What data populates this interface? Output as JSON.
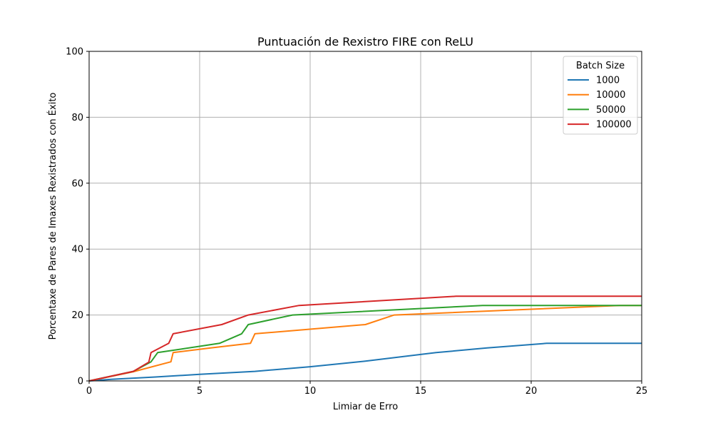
{
  "chart_data": {
    "type": "line",
    "title": "Puntuación de Rexistro FIRE con ReLU",
    "xlabel": "Limiar de Erro",
    "ylabel": "Porcentaxe de Pares de Imaxes Rexistrados con Éxito",
    "xlim": [
      0,
      25
    ],
    "ylim": [
      0,
      100
    ],
    "xticks": [
      0,
      5,
      10,
      15,
      20,
      25
    ],
    "yticks": [
      0,
      20,
      40,
      60,
      80,
      100
    ],
    "grid": true,
    "legend": {
      "title": "Batch Size",
      "placement": "top-right"
    },
    "series": [
      {
        "name": "1000",
        "color": "#1f77b4",
        "points": [
          [
            0,
            0
          ],
          [
            1,
            0.5
          ],
          [
            3,
            1.2
          ],
          [
            5,
            2
          ],
          [
            7.5,
            2.9
          ],
          [
            10,
            4.3
          ],
          [
            12.5,
            6
          ],
          [
            15.7,
            8.6
          ],
          [
            18,
            10
          ],
          [
            20.7,
            11.4
          ],
          [
            25,
            11.4
          ]
        ]
      },
      {
        "name": "10000",
        "color": "#ff7f0e",
        "points": [
          [
            0,
            0
          ],
          [
            2,
            2.8
          ],
          [
            3.7,
            5.8
          ],
          [
            3.8,
            8.6
          ],
          [
            5.5,
            10
          ],
          [
            7.3,
            11.4
          ],
          [
            7.5,
            14.3
          ],
          [
            12.5,
            17.1
          ],
          [
            13.8,
            20
          ],
          [
            24,
            22.9
          ],
          [
            25,
            22.9
          ]
        ]
      },
      {
        "name": "50000",
        "color": "#2ca02c",
        "points": [
          [
            0,
            0
          ],
          [
            2,
            2.9
          ],
          [
            2.8,
            5.8
          ],
          [
            3.1,
            8.6
          ],
          [
            5.9,
            11.4
          ],
          [
            6.9,
            14.3
          ],
          [
            7.2,
            17.1
          ],
          [
            9.2,
            20
          ],
          [
            17.8,
            22.9
          ],
          [
            25,
            22.9
          ]
        ]
      },
      {
        "name": "100000",
        "color": "#d62728",
        "points": [
          [
            0,
            0
          ],
          [
            2,
            2.9
          ],
          [
            2.7,
            5.7
          ],
          [
            2.8,
            8.6
          ],
          [
            3.6,
            11.4
          ],
          [
            3.8,
            14.3
          ],
          [
            6,
            17.1
          ],
          [
            7.2,
            20
          ],
          [
            9.5,
            22.9
          ],
          [
            16.6,
            25.7
          ],
          [
            25,
            25.7
          ]
        ]
      }
    ]
  }
}
